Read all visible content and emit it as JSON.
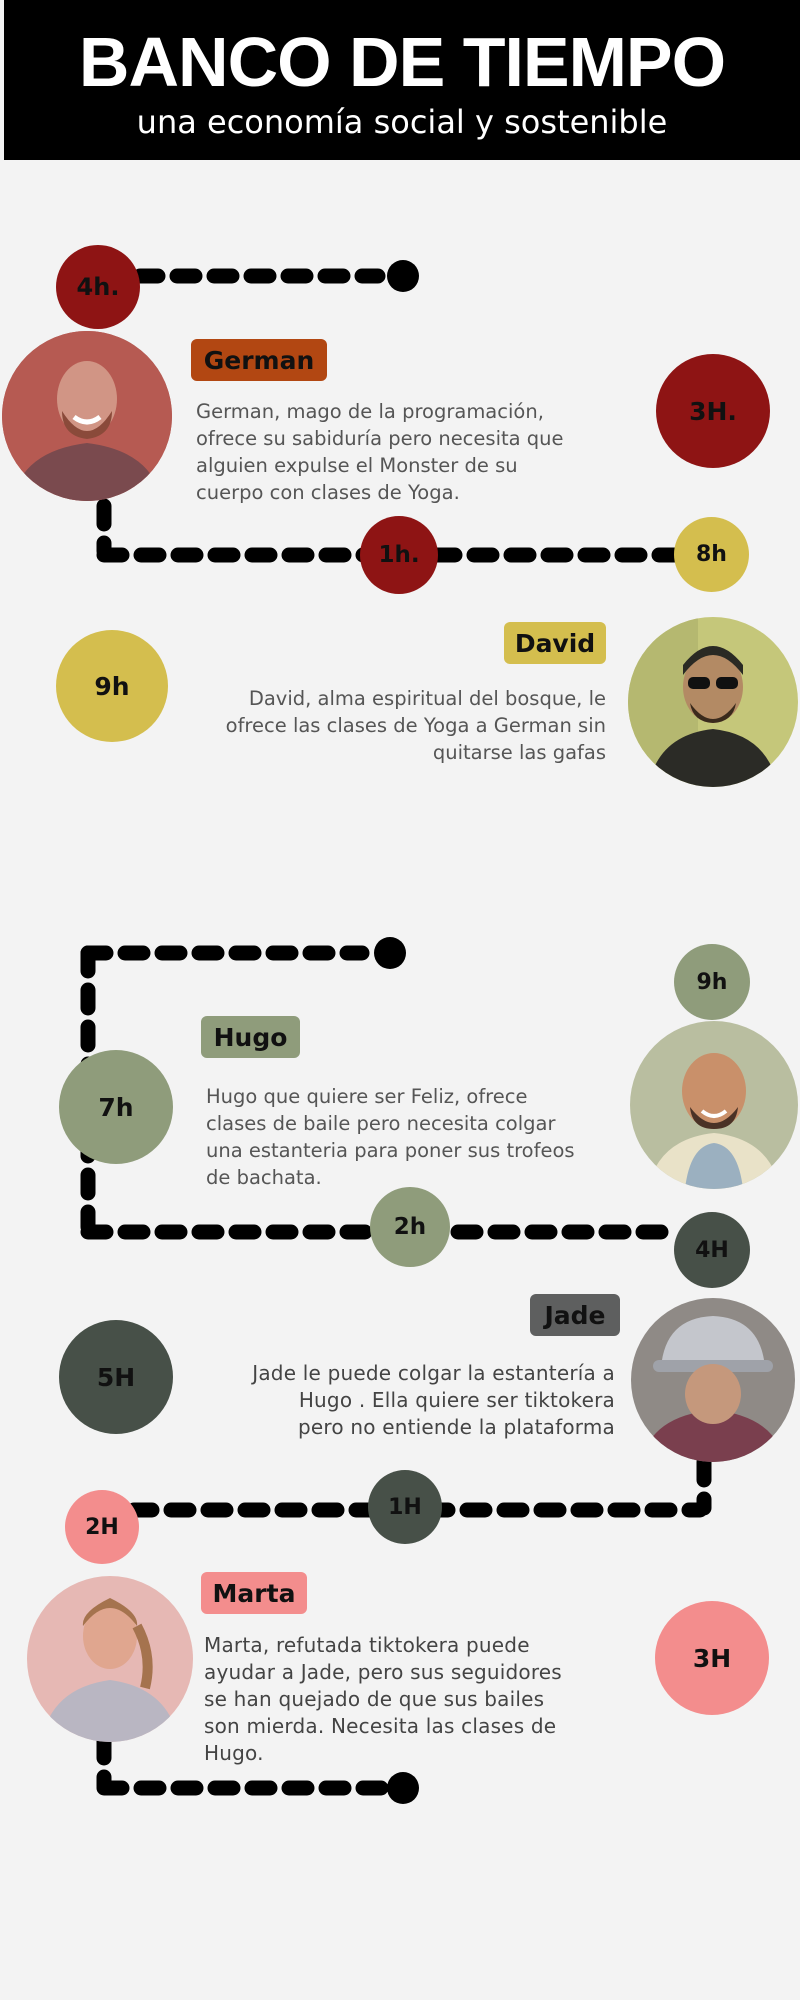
{
  "header": {
    "title": "BANCO DE TIEMPO",
    "subtitle": "una economía social y sostenible"
  },
  "colors": {
    "red": "#8e1414",
    "yellow": "#d4be4e",
    "sage": "#8f9c7b",
    "dark": "#475048",
    "pink": "#f38d8d",
    "german_tag": "#b24712",
    "jade_tag": "#5e5f5f"
  },
  "people": {
    "german": {
      "name": "German",
      "description": [
        "German, mago de la programación,",
        "ofrece su sabiduría pero necesita que",
        "alguien expulse el Monster de su",
        "cuerpo con clases de Yoga."
      ],
      "badges": [
        "4h.",
        "3H.",
        "1h.",
        "8h"
      ]
    },
    "david": {
      "name": "David",
      "description": [
        "David, alma espiritual del bosque, le",
        "ofrece las clases de Yoga a German sin",
        "quitarse las gafas"
      ],
      "badges": [
        "9h"
      ]
    },
    "hugo": {
      "name": "Hugo",
      "description": [
        "Hugo que quiere ser Feliz, ofrece",
        "clases de baile pero necesita colgar",
        "una estanteria para poner sus trofeos",
        "de bachata."
      ],
      "badges": [
        "9h",
        "7h",
        "2h"
      ]
    },
    "jade": {
      "name": "Jade",
      "description": [
        "Jade le puede colgar la estantería a",
        "Hugo . Ella quiere ser tiktokera",
        "pero no entiende la plataforma"
      ],
      "badges": [
        "4H",
        "5H",
        "1H"
      ]
    },
    "marta": {
      "name": "Marta",
      "description": [
        "Marta, refutada tiktokera puede",
        "ayudar a Jade, pero sus seguidores",
        "se han quejado de que sus bailes",
        "son mierda. Necesita las clases de",
        "Hugo."
      ],
      "badges": [
        "2H",
        "3H"
      ]
    }
  }
}
